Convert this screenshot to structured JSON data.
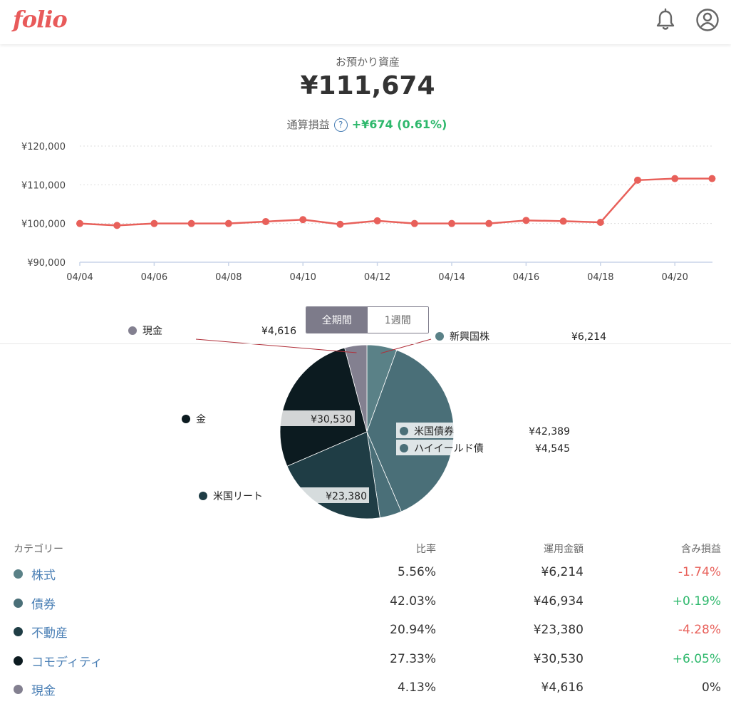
{
  "header": {
    "logo": "folio",
    "icons": [
      "bell-icon",
      "user-circle-icon"
    ]
  },
  "summary": {
    "label": "お預かり資産",
    "value": "¥111,674",
    "pl_label": "通算損益",
    "pl_help": "?",
    "pl_value": "+¥674 (0.61%)",
    "pl_color": "#2eb86c"
  },
  "line_chart_data": {
    "type": "line",
    "color": "#e8605a",
    "x": [
      "04/04",
      "04/05",
      "04/06",
      "04/07",
      "04/08",
      "04/09",
      "04/10",
      "04/11",
      "04/12",
      "04/13",
      "04/14",
      "04/15",
      "04/16",
      "04/17",
      "04/18",
      "04/19",
      "04/20",
      "04/21"
    ],
    "values": [
      100000,
      99500,
      100000,
      100000,
      100000,
      100500,
      101000,
      99800,
      100700,
      100000,
      100000,
      100000,
      100800,
      100600,
      100300,
      111200,
      111600,
      111600
    ],
    "ylim": [
      90000,
      120000
    ],
    "y_ticks": [
      "¥90,000",
      "¥100,000",
      "¥110,000",
      "¥120,000"
    ],
    "x_tick_labels": [
      "04/04",
      "04/06",
      "04/08",
      "04/10",
      "04/12",
      "04/14",
      "04/16",
      "04/18",
      "04/20"
    ]
  },
  "period_toggle": {
    "options": [
      "全期間",
      "1週間"
    ],
    "selected": "全期間"
  },
  "chart_data": {
    "type": "pie",
    "slices": [
      {
        "name": "新興国株",
        "value": 6214,
        "label": "¥6,214",
        "color": "#5a8187"
      },
      {
        "name": "米国債券",
        "value": 42389,
        "label": "¥42,389",
        "color": "#4a6f78"
      },
      {
        "name": "ハイイールド債",
        "value": 4545,
        "label": "¥4,545",
        "color": "#4a6f78"
      },
      {
        "name": "米国リート",
        "value": 23380,
        "label": "¥23,380",
        "color": "#1f3d45"
      },
      {
        "name": "金",
        "value": 30530,
        "label": "¥30,530",
        "color": "#0c1b20"
      },
      {
        "name": "現金",
        "value": 4616,
        "label": "¥4,616",
        "color": "#838090"
      }
    ]
  },
  "table": {
    "headers": [
      "カテゴリー",
      "比率",
      "運用金額",
      "含み損益"
    ],
    "rows": [
      {
        "category": "株式",
        "ratio": "5.56%",
        "amount": "¥6,214",
        "pl": "-1.74%",
        "dot_color": "#5a8187",
        "pl_color": "#e8605a"
      },
      {
        "category": "債券",
        "ratio": "42.03%",
        "amount": "¥46,934",
        "pl": "+0.19%",
        "dot_color": "#4a6f78",
        "pl_color": "#2eb86c"
      },
      {
        "category": "不動産",
        "ratio": "20.94%",
        "amount": "¥23,380",
        "pl": "-4.28%",
        "dot_color": "#1f3d45",
        "pl_color": "#e8605a"
      },
      {
        "category": "コモディティ",
        "ratio": "27.33%",
        "amount": "¥30,530",
        "pl": "+6.05%",
        "dot_color": "#0c1b20",
        "pl_color": "#2eb86c"
      },
      {
        "category": "現金",
        "ratio": "4.13%",
        "amount": "¥4,616",
        "pl": "0%",
        "dot_color": "#838090",
        "pl_color": "#333333"
      }
    ]
  }
}
